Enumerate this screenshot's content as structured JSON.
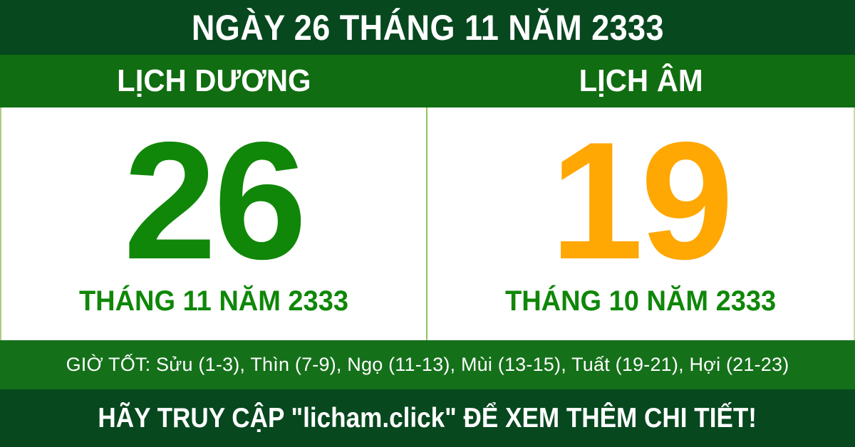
{
  "header": {
    "title": "NGÀY 26 THÁNG 11 NĂM 2333"
  },
  "calendar": {
    "solar": {
      "label": "LỊCH DƯƠNG",
      "day": "26",
      "month_year": "THÁNG 11 NĂM 2333"
    },
    "lunar": {
      "label": "LỊCH ÂM",
      "day": "19",
      "month_year": "THÁNG 10 NĂM 2333"
    }
  },
  "good_hours": {
    "text": "GIỜ TỐT: Sửu (1-3), Thìn (7-9), Ngọ (11-13), Mùi (13-15), Tuất (19-21), Hợi (21-23)"
  },
  "footer": {
    "text": "HÃY TRUY CẬP \"licham.click\" ĐỂ XEM THÊM CHI TIẾT!",
    "site": "licham.click"
  },
  "colors": {
    "dark_green_bar": "#07481f",
    "band_green": "#116d11",
    "solar_day_green": "#108708",
    "lunar_day_orange": "#ffa702",
    "month_label_green": "#0f8708",
    "divider_light_green": "#8fc45e",
    "text_white": "#ffffff"
  }
}
